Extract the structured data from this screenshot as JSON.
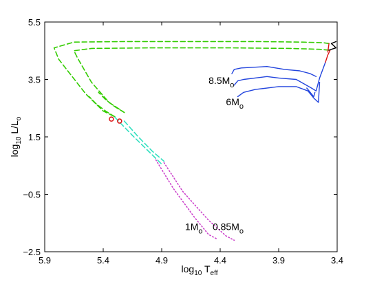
{
  "chart_data": {
    "type": "line",
    "xlabel": {
      "base": "log",
      "sub": "10",
      "mid": " T",
      "sub2": "eff"
    },
    "ylabel": {
      "base": "log",
      "sub": "10",
      "mid": " L/L",
      "sub2": "o"
    },
    "xlim": [
      5.9,
      3.4
    ],
    "ylim": [
      -2.5,
      5.5
    ],
    "x_reversed": true,
    "xticks": [
      5.9,
      5.4,
      4.9,
      4.4,
      3.9,
      3.4
    ],
    "xtick_labels": [
      "5.9",
      "5.4",
      "4.9",
      "4.4",
      "3.9",
      "3.4"
    ],
    "yticks": [
      -2.5,
      -0.5,
      1.5,
      3.5,
      5.5
    ],
    "ytick_labels": [
      "−2.5",
      "−0.5",
      "1.5",
      "3.5",
      "5.5"
    ],
    "grid": false,
    "colors": {
      "green": "#33cc00",
      "cyan": "#33e0c0",
      "magenta": "#cc44cc",
      "blue": "#2244dd",
      "red": "#dd1111",
      "black": "#000000"
    },
    "series": [
      {
        "color": "green",
        "style": "dashed",
        "x": [
          3.47,
          3.52,
          3.7,
          4.1,
          4.6,
          5.2,
          5.65,
          5.82,
          5.78,
          5.55,
          5.4,
          5.3
        ],
        "y": [
          4.75,
          4.78,
          4.8,
          4.82,
          4.82,
          4.82,
          4.8,
          4.6,
          4.2,
          3.0,
          2.4,
          2.2
        ]
      },
      {
        "color": "green",
        "style": "dashed",
        "x": [
          3.47,
          3.55,
          3.8,
          4.3,
          5.0,
          5.5,
          5.65,
          5.62,
          5.5,
          5.35,
          5.22
        ],
        "y": [
          4.52,
          4.55,
          4.58,
          4.6,
          4.6,
          4.58,
          4.5,
          4.25,
          3.4,
          2.7,
          2.35
        ]
      },
      {
        "color": "green",
        "style": "dashed",
        "x": [
          5.3,
          5.38,
          5.46,
          5.52
        ],
        "y": [
          2.2,
          2.4,
          2.65,
          2.9
        ]
      },
      {
        "color": "green",
        "style": "dashed",
        "x": [
          5.22,
          5.3,
          5.38,
          5.44
        ],
        "y": [
          2.35,
          2.55,
          2.8,
          3.05
        ]
      },
      {
        "color": "cyan",
        "style": "dashed",
        "x": [
          5.3,
          5.15,
          5.0,
          4.9
        ],
        "y": [
          2.18,
          1.55,
          0.95,
          0.55
        ]
      },
      {
        "color": "cyan",
        "style": "dashed",
        "x": [
          5.22,
          5.1,
          4.98,
          4.88
        ],
        "y": [
          2.05,
          1.5,
          1.0,
          0.65
        ]
      },
      {
        "color": "magenta",
        "style": "dotted",
        "x": [
          4.95,
          4.8,
          4.62,
          4.5,
          4.43
        ],
        "y": [
          0.7,
          -0.3,
          -1.3,
          -1.9,
          -2.05
        ]
      },
      {
        "color": "magenta",
        "style": "dotted",
        "x": [
          4.88,
          4.72,
          4.5,
          4.35,
          4.28
        ],
        "y": [
          0.6,
          -0.4,
          -1.4,
          -1.95,
          -2.1
        ]
      },
      {
        "color": "blue",
        "style": "solid",
        "x": [
          4.28,
          4.25,
          4.2,
          4.0,
          3.9,
          3.75,
          3.62,
          3.58,
          3.55,
          3.5
        ],
        "y": [
          3.3,
          3.45,
          3.5,
          3.6,
          3.55,
          3.5,
          3.2,
          3.1,
          3.55,
          4.1
        ]
      },
      {
        "color": "blue",
        "style": "solid",
        "x": [
          4.25,
          4.2,
          4.1,
          3.9,
          3.75,
          3.65,
          3.6,
          3.56,
          3.55
        ],
        "y": [
          2.9,
          3.05,
          3.15,
          3.25,
          3.25,
          3.1,
          2.85,
          2.7,
          3.4
        ]
      },
      {
        "color": "blue",
        "style": "solid",
        "x": [
          4.3,
          4.28,
          4.22,
          4.0,
          3.85,
          3.72,
          3.63,
          3.58
        ],
        "y": [
          3.7,
          3.85,
          3.9,
          3.95,
          3.85,
          3.8,
          3.7,
          3.6
        ]
      },
      {
        "color": "blue",
        "style": "solid",
        "x": [
          3.66,
          3.62,
          3.6,
          3.59
        ],
        "y": [
          3.2,
          3.0,
          2.9,
          3.05
        ]
      },
      {
        "color": "red",
        "style": "solid",
        "x": [
          3.5,
          3.48,
          3.46
        ],
        "y": [
          4.1,
          4.35,
          4.52
        ]
      },
      {
        "color": "red",
        "style": "solid",
        "x": [
          3.48,
          3.47
        ],
        "y": [
          4.45,
          4.75
        ]
      },
      {
        "color": "black",
        "style": "solid",
        "x": [
          3.47,
          3.44,
          3.41,
          3.43,
          3.45,
          3.42,
          3.41
        ],
        "y": [
          4.52,
          4.56,
          4.6,
          4.68,
          4.75,
          4.8,
          4.82
        ]
      }
    ],
    "markers": [
      {
        "x": 5.33,
        "y": 2.12,
        "color": "red"
      },
      {
        "x": 5.26,
        "y": 2.05,
        "color": "red"
      }
    ],
    "annotations": [
      {
        "main": "8.5M",
        "sub": "o",
        "x": 4.28,
        "y": 3.35
      },
      {
        "main": "6M",
        "sub": "o",
        "x": 4.2,
        "y": 2.6
      },
      {
        "main": "1M",
        "sub": "o",
        "x": 4.55,
        "y": -1.75
      },
      {
        "main": "0.85M",
        "sub": "o",
        "x": 4.2,
        "y": -1.75
      }
    ]
  }
}
